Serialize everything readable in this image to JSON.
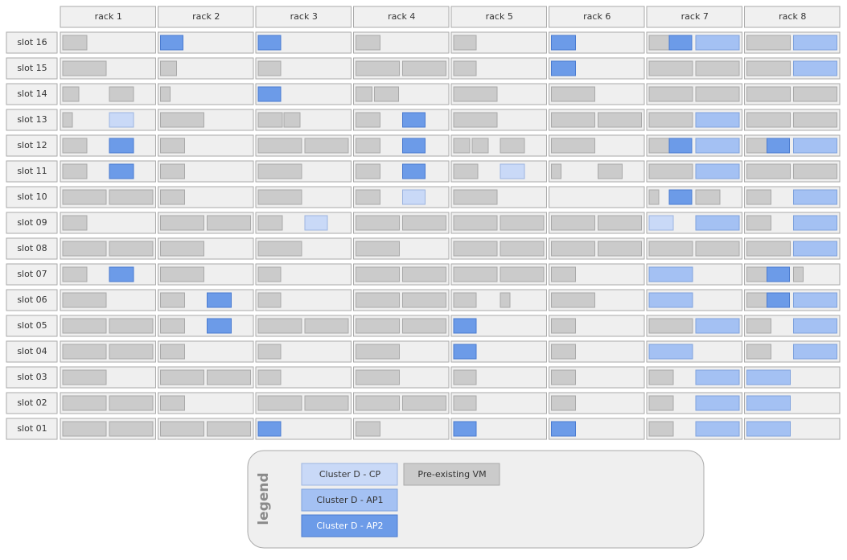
{
  "header": {
    "racks": [
      "rack 1",
      "rack 2",
      "rack 3",
      "rack 4",
      "rack 5",
      "rack 6",
      "rack 7",
      "rack 8"
    ]
  },
  "slots": [
    "slot 16",
    "slot 15",
    "slot 14",
    "slot 13",
    "slot 12",
    "slot 11",
    "slot 10",
    "slot 09",
    "slot 08",
    "slot 07",
    "slot 06",
    "slot 05",
    "slot 04",
    "slot 03",
    "slot 02",
    "slot 01"
  ],
  "legend": {
    "title": "legend",
    "items": [
      "Cluster D - CP",
      "Cluster D - AP1",
      "Cluster D - AP2",
      "Pre-existing VM"
    ]
  }
}
